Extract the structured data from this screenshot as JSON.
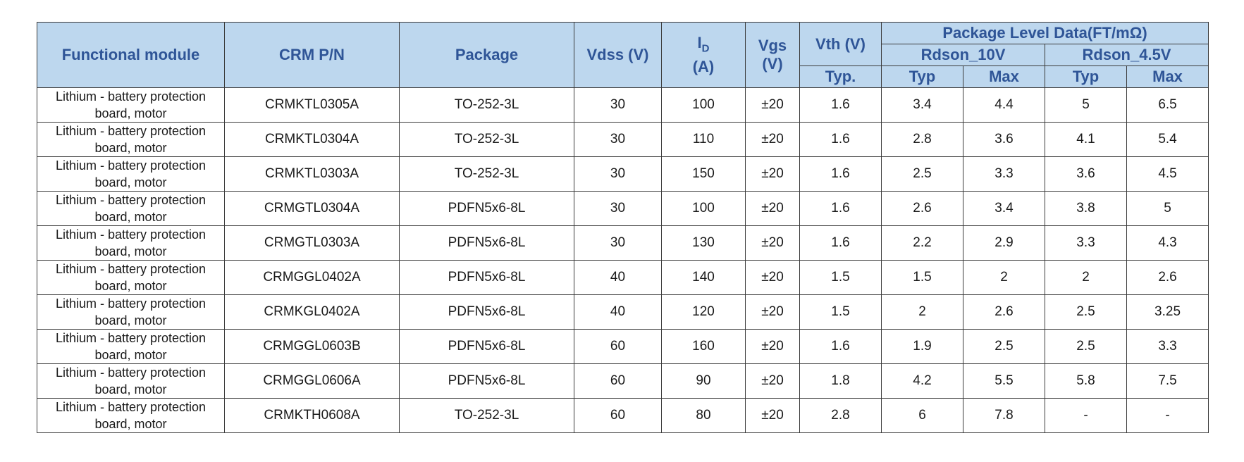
{
  "header": {
    "functional_module": "Functional module",
    "crm_pn": "CRM P/N",
    "package": "Package",
    "vdss": "Vdss (V)",
    "id_main": "I",
    "id_sub": "D",
    "id_unit": "(A)",
    "vgs_line1": "Vgs",
    "vgs_line2": "(V)",
    "vth": "Vth (V)",
    "vth_typ": "Typ.",
    "pld": "Package Level Data(FT/mΩ)",
    "rdson_10v": "Rdson_10V",
    "rdson_45v": "Rdson_4.5V",
    "typ": "Typ",
    "max": "Max"
  },
  "rows": [
    {
      "module": "Lithium - battery protection board, motor",
      "pn": "CRMKTL0305A",
      "package": "TO-252-3L",
      "vdss": "30",
      "id": "100",
      "vgs": "±20",
      "vth": "1.6",
      "r10_typ": "3.4",
      "r10_max": "4.4",
      "r45_typ": "5",
      "r45_max": "6.5"
    },
    {
      "module": "Lithium - battery protection board, motor",
      "pn": "CRMKTL0304A",
      "package": "TO-252-3L",
      "vdss": "30",
      "id": "110",
      "vgs": "±20",
      "vth": "1.6",
      "r10_typ": "2.8",
      "r10_max": "3.6",
      "r45_typ": "4.1",
      "r45_max": "5.4"
    },
    {
      "module": "Lithium - battery protection board, motor",
      "pn": "CRMKTL0303A",
      "package": "TO-252-3L",
      "vdss": "30",
      "id": "150",
      "vgs": "±20",
      "vth": "1.6",
      "r10_typ": "2.5",
      "r10_max": "3.3",
      "r45_typ": "3.6",
      "r45_max": "4.5"
    },
    {
      "module": "Lithium - battery protection board, motor",
      "pn": "CRMGTL0304A",
      "package": "PDFN5x6-8L",
      "vdss": "30",
      "id": "100",
      "vgs": "±20",
      "vth": "1.6",
      "r10_typ": "2.6",
      "r10_max": "3.4",
      "r45_typ": "3.8",
      "r45_max": "5"
    },
    {
      "module": "Lithium - battery protection board, motor",
      "pn": "CRMGTL0303A",
      "package": "PDFN5x6-8L",
      "vdss": "30",
      "id": "130",
      "vgs": "±20",
      "vth": "1.6",
      "r10_typ": "2.2",
      "r10_max": "2.9",
      "r45_typ": "3.3",
      "r45_max": "4.3"
    },
    {
      "module": "Lithium - battery protection board, motor",
      "pn": "CRMGGL0402A",
      "package": "PDFN5x6-8L",
      "vdss": "40",
      "id": "140",
      "vgs": "±20",
      "vth": "1.5",
      "r10_typ": "1.5",
      "r10_max": "2",
      "r45_typ": "2",
      "r45_max": "2.6"
    },
    {
      "module": "Lithium - battery protection board, motor",
      "pn": "CRMKGL0402A",
      "package": "PDFN5x6-8L",
      "vdss": "40",
      "id": "120",
      "vgs": "±20",
      "vth": "1.5",
      "r10_typ": "2",
      "r10_max": "2.6",
      "r45_typ": "2.5",
      "r45_max": "3.25"
    },
    {
      "module": "Lithium - battery protection board, motor",
      "pn": "CRMGGL0603B",
      "package": "PDFN5x6-8L",
      "vdss": "60",
      "id": "160",
      "vgs": "±20",
      "vth": "1.6",
      "r10_typ": "1.9",
      "r10_max": "2.5",
      "r45_typ": "2.5",
      "r45_max": "3.3"
    },
    {
      "module": "Lithium - battery protection board, motor",
      "pn": "CRMGGL0606A",
      "package": "PDFN5x6-8L",
      "vdss": "60",
      "id": "90",
      "vgs": "±20",
      "vth": "1.8",
      "r10_typ": "4.2",
      "r10_max": "5.5",
      "r45_typ": "5.8",
      "r45_max": "7.5"
    },
    {
      "module": "Lithium - battery protection board, motor",
      "pn": "CRMKTH0608A",
      "package": "TO-252-3L",
      "vdss": "60",
      "id": "80",
      "vgs": "±20",
      "vth": "2.8",
      "r10_typ": "6",
      "r10_max": "7.8",
      "r45_typ": "-",
      "r45_max": "-"
    }
  ]
}
